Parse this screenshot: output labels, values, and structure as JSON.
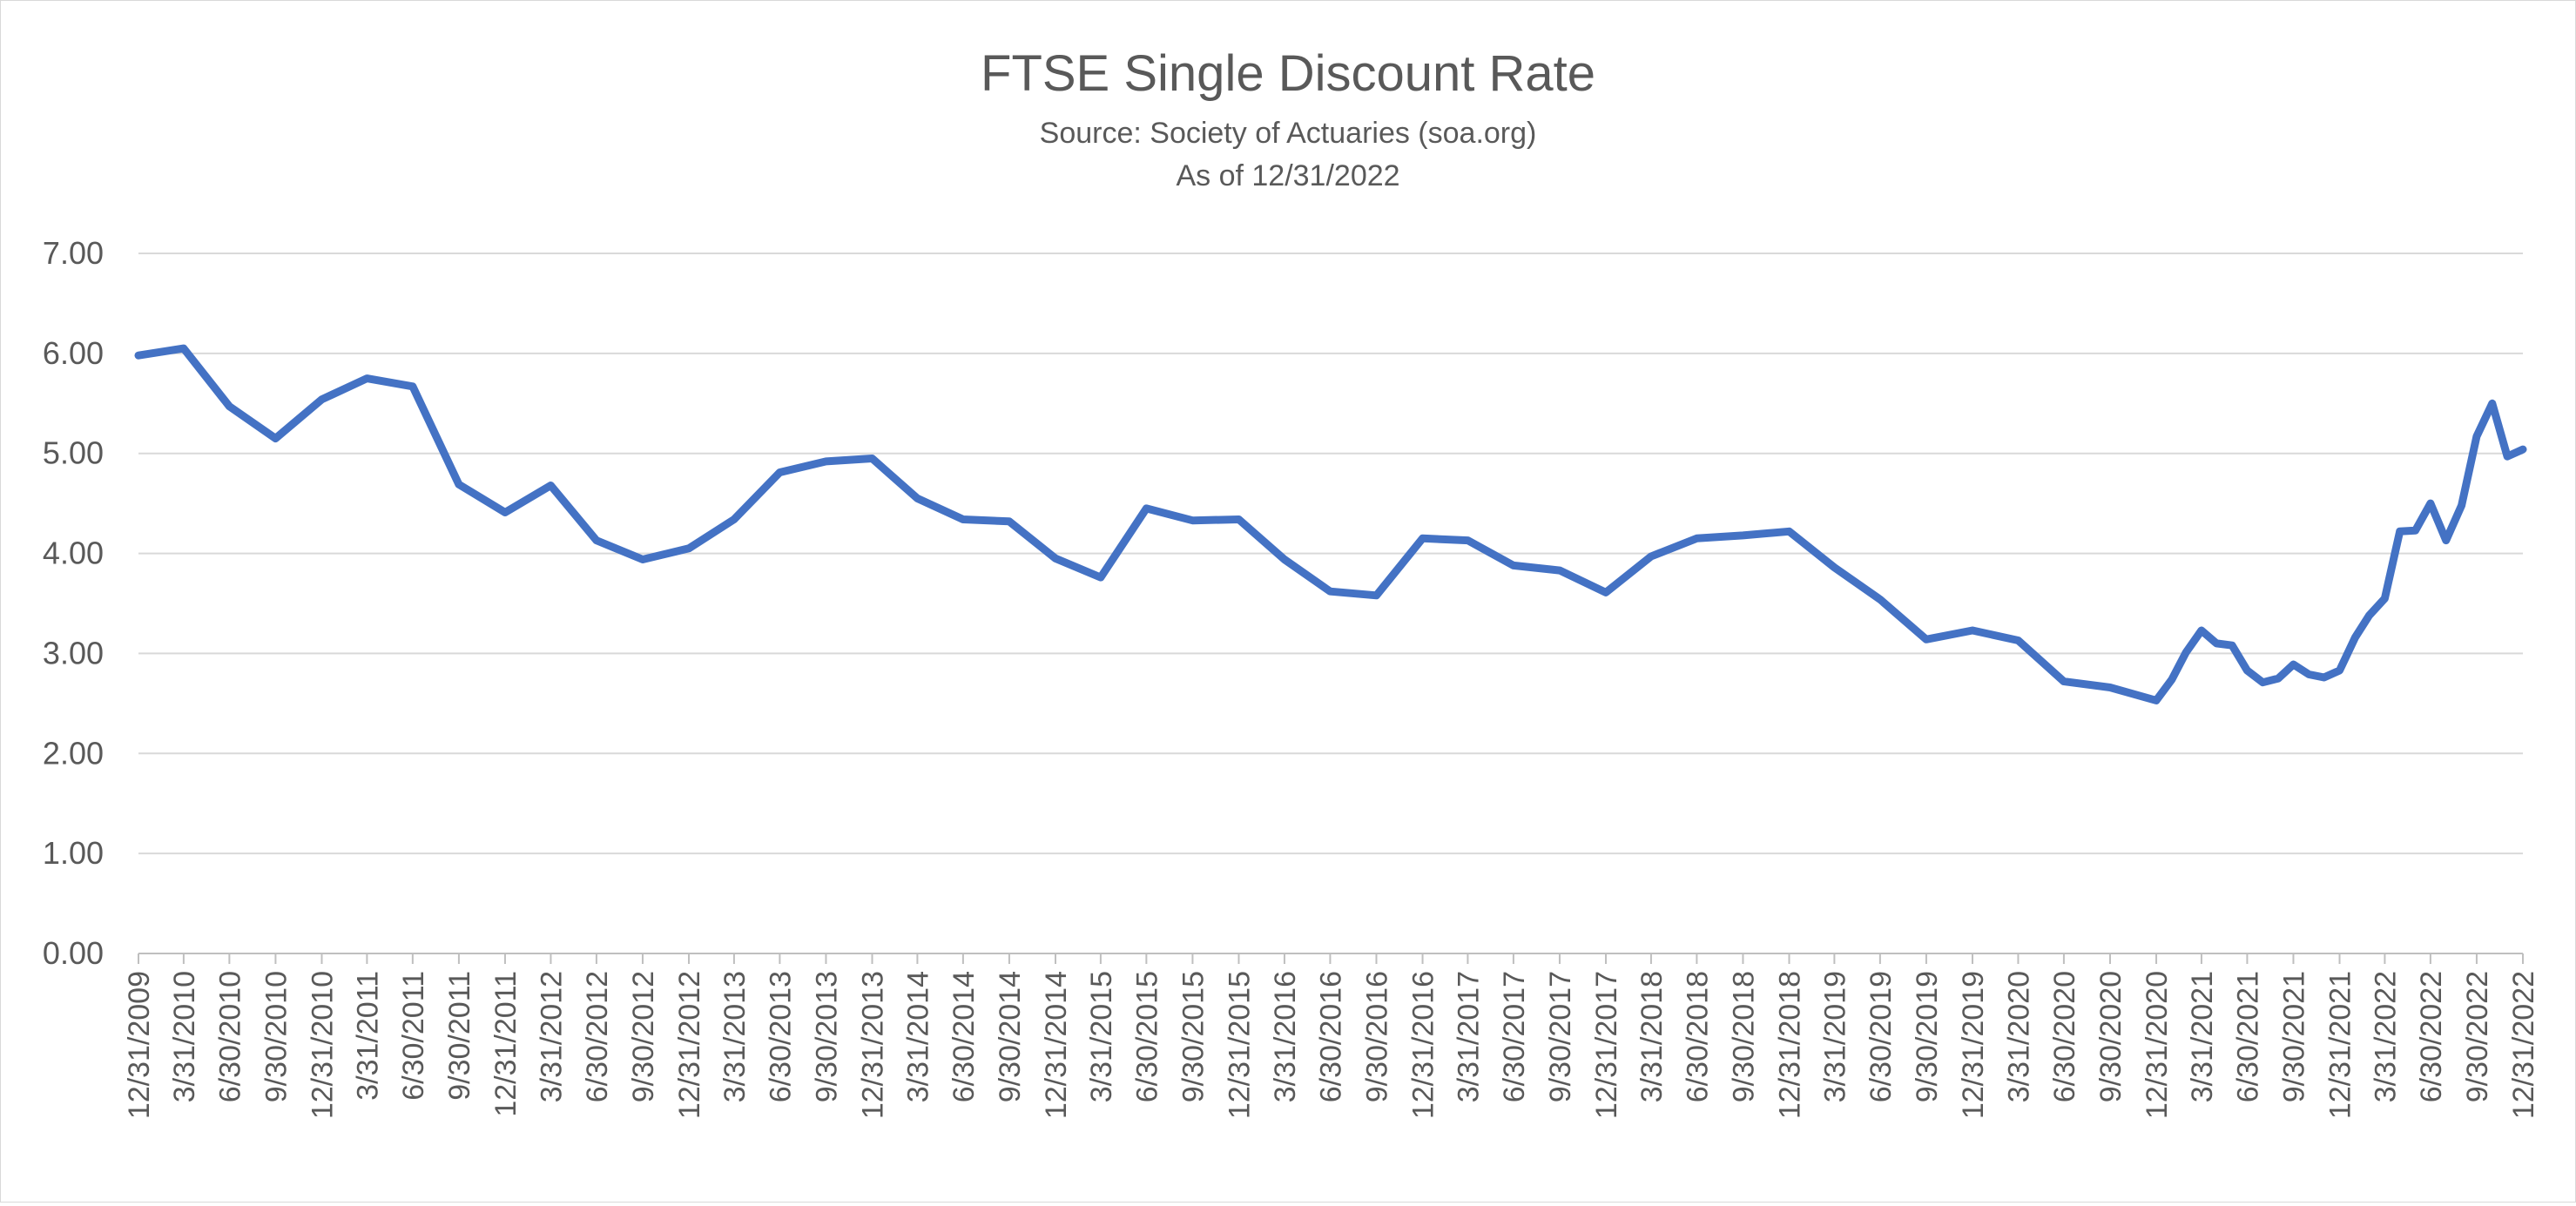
{
  "chart_data": {
    "type": "line",
    "title": "FTSE Single Discount Rate",
    "subtitle_lines": [
      "Source: Society of Actuaries (soa.org)",
      "As of 12/31/2022"
    ],
    "xlabel": "",
    "ylabel": "",
    "ylim": [
      0,
      7
    ],
    "yticks": [
      0,
      1,
      2,
      3,
      4,
      5,
      6,
      7
    ],
    "ytick_labels": [
      "0.00",
      "1.00",
      "2.00",
      "3.00",
      "4.00",
      "5.00",
      "6.00",
      "7.00"
    ],
    "grid": true,
    "legend": "none",
    "line_color": "#4472c4",
    "x_tick_labels": [
      "12/31/2009",
      "3/31/2010",
      "6/30/2010",
      "9/30/2010",
      "12/31/2010",
      "3/31/2011",
      "6/30/2011",
      "9/30/2011",
      "12/31/2011",
      "3/31/2012",
      "6/30/2012",
      "9/30/2012",
      "12/31/2012",
      "3/31/2013",
      "6/30/2013",
      "9/30/2013",
      "12/31/2013",
      "3/31/2014",
      "6/30/2014",
      "9/30/2014",
      "12/31/2014",
      "3/31/2015",
      "6/30/2015",
      "9/30/2015",
      "12/31/2015",
      "3/31/2016",
      "6/30/2016",
      "9/30/2016",
      "12/31/2016",
      "3/31/2017",
      "6/30/2017",
      "9/30/2017",
      "12/31/2017",
      "3/31/2018",
      "6/30/2018",
      "9/30/2018",
      "12/31/2018",
      "3/31/2019",
      "6/30/2019",
      "9/30/2019",
      "12/31/2019",
      "3/31/2020",
      "6/30/2020",
      "9/30/2020",
      "12/31/2020",
      "3/31/2021",
      "6/30/2021",
      "9/30/2021",
      "12/31/2021",
      "3/31/2022",
      "6/30/2022",
      "9/30/2022",
      "12/31/2022"
    ],
    "series": [
      {
        "points": [
          [
            "12/31/2009",
            5.98
          ],
          [
            "3/31/2010",
            6.05
          ],
          [
            "6/30/2010",
            5.47
          ],
          [
            "9/30/2010",
            5.15
          ],
          [
            "12/31/2010",
            5.54
          ],
          [
            "3/31/2011",
            5.75
          ],
          [
            "6/30/2011",
            5.67
          ],
          [
            "9/30/2011",
            4.69
          ],
          [
            "12/31/2011",
            4.41
          ],
          [
            "3/31/2012",
            4.68
          ],
          [
            "6/30/2012",
            4.13
          ],
          [
            "9/30/2012",
            3.94
          ],
          [
            "12/31/2012",
            4.05
          ],
          [
            "3/31/2013",
            4.34
          ],
          [
            "6/30/2013",
            4.81
          ],
          [
            "9/30/2013",
            4.92
          ],
          [
            "12/31/2013",
            4.95
          ],
          [
            "3/31/2014",
            4.55
          ],
          [
            "6/30/2014",
            4.34
          ],
          [
            "9/30/2014",
            4.32
          ],
          [
            "12/31/2014",
            3.95
          ],
          [
            "3/31/2015",
            3.76
          ],
          [
            "6/30/2015",
            4.45
          ],
          [
            "9/30/2015",
            4.33
          ],
          [
            "12/31/2015",
            4.34
          ],
          [
            "3/31/2016",
            3.94
          ],
          [
            "6/30/2016",
            3.62
          ],
          [
            "9/30/2016",
            3.58
          ],
          [
            "12/31/2016",
            4.15
          ],
          [
            "3/31/2017",
            4.13
          ],
          [
            "6/30/2017",
            3.88
          ],
          [
            "9/30/2017",
            3.83
          ],
          [
            "12/31/2017",
            3.61
          ],
          [
            "3/31/2018",
            3.97
          ],
          [
            "6/30/2018",
            4.15
          ],
          [
            "9/30/2018",
            4.18
          ],
          [
            "12/31/2018",
            4.22
          ],
          [
            "3/31/2019",
            3.86
          ],
          [
            "6/30/2019",
            3.54
          ],
          [
            "9/30/2019",
            3.14
          ],
          [
            "12/31/2019",
            3.23
          ],
          [
            "3/31/2020",
            3.13
          ],
          [
            "6/30/2020",
            2.72
          ],
          [
            "9/30/2020",
            2.66
          ],
          [
            "12/31/2020",
            2.53
          ],
          [
            "1/31/2021",
            2.74
          ],
          [
            "2/28/2021",
            3.01
          ],
          [
            "3/31/2021",
            3.23
          ],
          [
            "4/30/2021",
            3.1
          ],
          [
            "5/31/2021",
            3.08
          ],
          [
            "6/30/2021",
            2.83
          ],
          [
            "7/31/2021",
            2.71
          ],
          [
            "8/31/2021",
            2.75
          ],
          [
            "9/30/2021",
            2.89
          ],
          [
            "10/31/2021",
            2.79
          ],
          [
            "11/30/2021",
            2.76
          ],
          [
            "12/31/2021",
            2.83
          ],
          [
            "1/31/2022",
            3.16
          ],
          [
            "2/28/2022",
            3.38
          ],
          [
            "3/31/2022",
            3.55
          ],
          [
            "4/30/2022",
            4.22
          ],
          [
            "5/31/2022",
            4.23
          ],
          [
            "6/30/2022",
            4.5
          ],
          [
            "7/31/2022",
            4.13
          ],
          [
            "8/31/2022",
            4.48
          ],
          [
            "9/30/2022",
            5.17
          ],
          [
            "10/31/2022",
            5.5
          ],
          [
            "11/30/2022",
            4.97
          ],
          [
            "12/31/2022",
            5.04
          ]
        ]
      }
    ]
  }
}
